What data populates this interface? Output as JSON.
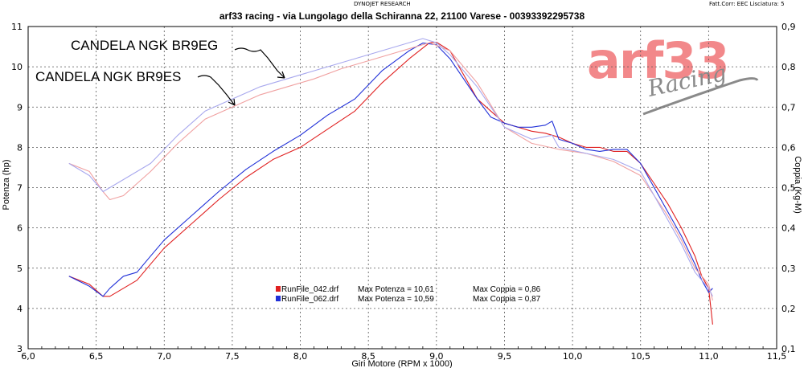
{
  "header": {
    "top_center": "DYNOJET RESEARCH",
    "top_right": "Fatt.Corr: EEC   Lisciatura: 5",
    "title": "arf33 racing - via Lungolago della Schiranna 22, 21100 Varese - 00393392295738"
  },
  "logo": {
    "main": "arf33",
    "sub": "Racing"
  },
  "colors": {
    "red": "#e02020",
    "blue": "#2030d8",
    "light_red": "#f0a0a0",
    "light_blue": "#a8a8ee"
  },
  "chart_data": {
    "type": "line",
    "xlabel": "Giri Motore (RPM x 1000)",
    "ylabel_left": "Potenza (hp)",
    "ylabel_right": "Coppia (Kg-M)",
    "xlim": [
      6.0,
      11.5
    ],
    "ylim_left": [
      3,
      11
    ],
    "ylim_right": [
      0.1,
      0.9
    ],
    "x_ticks": [
      "6,0",
      "6,5",
      "7,0",
      "7,5",
      "8,0",
      "8,5",
      "9,0",
      "9,5",
      "10,0",
      "10,5",
      "11,0",
      "11,5"
    ],
    "y_left_ticks": [
      "3",
      "4",
      "5",
      "6",
      "7",
      "8",
      "9",
      "10",
      "11"
    ],
    "y_right_ticks": [
      "0,1",
      "0,2",
      "0,3",
      "0,4",
      "0,5",
      "0,6",
      "0,7",
      "0,8",
      "0,9"
    ],
    "grid": true,
    "annotations": [
      "CANDELA NGK BR9EG",
      "CANDELA NGK BR9ES"
    ],
    "legend": [
      {
        "file": "RunFile_042.drf",
        "potenza_label": "Max Potenza = 10,61",
        "coppia_label": "Max Coppia = 0,86",
        "color": "#e02020"
      },
      {
        "file": "RunFile_062.drf",
        "potenza_label": "Max Potenza = 10,59",
        "coppia_label": "Max Coppia = 0,87",
        "color": "#2030d8"
      }
    ],
    "series": [
      {
        "name": "RunFile_042.drf",
        "measure": "potenza",
        "x": [
          6.3,
          6.45,
          6.55,
          6.6,
          6.7,
          6.8,
          6.9,
          7.0,
          7.2,
          7.4,
          7.6,
          7.8,
          8.0,
          8.2,
          8.4,
          8.6,
          8.8,
          8.95,
          9.0,
          9.1,
          9.2,
          9.3,
          9.4,
          9.5,
          9.6,
          9.7,
          9.8,
          9.9,
          10.0,
          10.1,
          10.2,
          10.3,
          10.4,
          10.5,
          10.6,
          10.7,
          10.8,
          10.9,
          10.95,
          11.0,
          11.03
        ],
        "y": [
          4.8,
          4.6,
          4.3,
          4.3,
          4.5,
          4.7,
          5.1,
          5.5,
          6.1,
          6.7,
          7.25,
          7.7,
          8.0,
          8.45,
          8.9,
          9.6,
          10.2,
          10.6,
          10.61,
          10.4,
          9.8,
          9.2,
          8.9,
          8.6,
          8.5,
          8.4,
          8.35,
          8.25,
          8.1,
          8.0,
          8.0,
          7.9,
          7.9,
          7.6,
          7.1,
          6.6,
          6.0,
          5.3,
          4.8,
          4.5,
          3.6
        ]
      },
      {
        "name": "RunFile_062.drf",
        "measure": "potenza",
        "x": [
          6.3,
          6.45,
          6.55,
          6.6,
          6.7,
          6.8,
          6.9,
          7.0,
          7.2,
          7.4,
          7.6,
          7.8,
          8.0,
          8.2,
          8.4,
          8.6,
          8.8,
          8.9,
          9.0,
          9.1,
          9.2,
          9.3,
          9.4,
          9.5,
          9.6,
          9.7,
          9.8,
          9.85,
          9.9,
          10.0,
          10.1,
          10.2,
          10.3,
          10.4,
          10.5,
          10.6,
          10.7,
          10.8,
          10.9,
          10.95,
          11.0,
          11.03
        ],
        "y": [
          4.8,
          4.55,
          4.3,
          4.5,
          4.8,
          4.9,
          5.3,
          5.7,
          6.3,
          6.9,
          7.45,
          7.9,
          8.3,
          8.8,
          9.2,
          9.9,
          10.4,
          10.59,
          10.55,
          10.2,
          9.7,
          9.2,
          8.75,
          8.6,
          8.5,
          8.5,
          8.55,
          8.65,
          8.2,
          8.1,
          7.95,
          7.9,
          7.95,
          7.95,
          7.6,
          7.0,
          6.4,
          5.8,
          5.1,
          4.7,
          4.4,
          4.5
        ]
      },
      {
        "name": "RunFile_042.drf",
        "measure": "coppia",
        "x": [
          6.3,
          6.45,
          6.55,
          6.6,
          6.7,
          6.9,
          7.1,
          7.3,
          7.5,
          7.7,
          7.9,
          8.1,
          8.3,
          8.5,
          8.7,
          8.85,
          8.95,
          9.1,
          9.3,
          9.5,
          9.7,
          9.9,
          10.1,
          10.3,
          10.5,
          10.6,
          10.7,
          10.8,
          10.9,
          11.0,
          11.03
        ],
        "y": [
          0.56,
          0.54,
          0.49,
          0.47,
          0.48,
          0.54,
          0.61,
          0.67,
          0.7,
          0.73,
          0.75,
          0.77,
          0.795,
          0.815,
          0.835,
          0.85,
          0.86,
          0.84,
          0.76,
          0.65,
          0.61,
          0.595,
          0.585,
          0.565,
          0.53,
          0.48,
          0.43,
          0.37,
          0.3,
          0.26,
          0.22
        ]
      },
      {
        "name": "RunFile_062.drf",
        "measure": "coppia",
        "x": [
          6.3,
          6.45,
          6.55,
          6.6,
          6.7,
          6.9,
          7.1,
          7.3,
          7.5,
          7.7,
          7.9,
          8.1,
          8.3,
          8.5,
          8.7,
          8.8,
          8.9,
          9.0,
          9.1,
          9.3,
          9.5,
          9.7,
          9.85,
          9.9,
          10.1,
          10.3,
          10.5,
          10.6,
          10.7,
          10.8,
          10.9,
          11.0,
          11.03
        ],
        "y": [
          0.56,
          0.53,
          0.49,
          0.5,
          0.52,
          0.56,
          0.63,
          0.69,
          0.72,
          0.75,
          0.77,
          0.79,
          0.81,
          0.83,
          0.85,
          0.86,
          0.87,
          0.86,
          0.83,
          0.75,
          0.65,
          0.62,
          0.63,
          0.6,
          0.585,
          0.57,
          0.54,
          0.48,
          0.42,
          0.36,
          0.29,
          0.25,
          0.23
        ]
      }
    ]
  }
}
